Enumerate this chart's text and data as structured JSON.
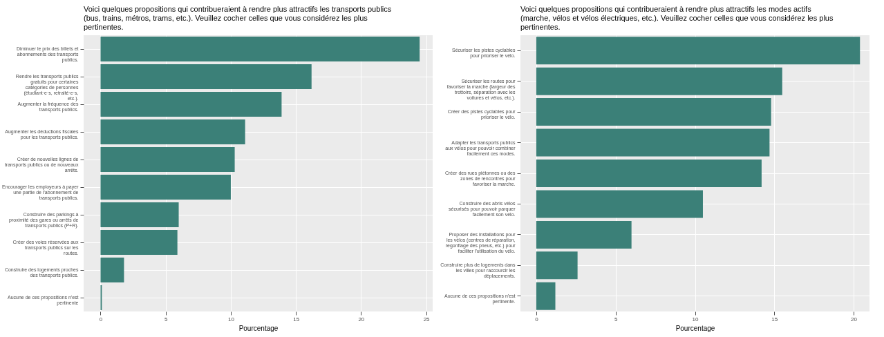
{
  "chart_data": [
    {
      "type": "bar",
      "orientation": "horizontal",
      "title": "Voici quelques propositions qui contribueraient à rendre plus attractifs les transports publics (bus, trains, métros, trams, etc.). Veuillez cocher celles que vous considérez les plus pertinentes.",
      "xlabel": "Pourcentage",
      "categories": [
        "Diminuer le prix des billets et abonnements des transports publics.",
        "Rendre les transports publics gratuits pour certaines catégories de personnes (étudiant·e·s, retraité·e·s, etc.).",
        "Augmenter la fréquence des transports publics.",
        "Augmenter les déductions fiscales pour les transports publics.",
        "Créer de nouvelles lignes de transports publics ou de nouveaux arrêts.",
        "Encourager les employeurs à payer une partie de l'abonnement de transports publics.",
        "Construire des parkings à proximité des gares ou arrêts de transports publics (P+R).",
        "Créer des voies réservées aux transports publics sur les routes.",
        "Construire des logements proches des transports publics.",
        "Aucune de ces propositions n'est pertinente"
      ],
      "values": [
        24.5,
        16.2,
        13.9,
        11.1,
        10.3,
        10.0,
        6.0,
        5.9,
        1.8,
        0.1
      ],
      "color": "#3b8078",
      "xlim": [
        -1.3,
        25.5
      ],
      "xticks": [
        0,
        5,
        10,
        15,
        20,
        25
      ],
      "grid": true
    },
    {
      "type": "bar",
      "orientation": "horizontal",
      "title": "Voici quelques propositions qui contribueraient à rendre plus attractifs les modes actifs (marche, vélos et vélos électriques, etc.). Veuillez cocher celles que vous considérez les plus pertinentes.",
      "xlabel": "Pourcentage",
      "categories": [
        "Sécuriser les pistes cyclables pour prioriser le vélo.",
        "Sécuriser les routes pour favoriser la marche (largeur des trottoirs, séparation avec les voitures et vélos, etc.).",
        "Créer des pistes cyclables pour prioriser le vélo.",
        "Adapter les transports publics aux vélos pour pouvoir combiner facilement ces modes.",
        "Créer des rues piétonnes ou des zones de rencontres pour favoriser la marche.",
        "Construire des abris vélos sécurisés pour pouvoir parquer facilement son vélo.",
        "Proposer des installations pour les vélos (centres de réparation, regonflage des pneus, etc.) pour faciliter l'utilisation du vélo.",
        "Construire plus de logements dans les villes pour raccourcir les déplacements.",
        "Aucune de ces propositions n'est pertinente."
      ],
      "values": [
        20.4,
        15.5,
        14.8,
        14.7,
        14.2,
        10.5,
        6.0,
        2.6,
        1.2
      ],
      "color": "#3b8078",
      "xlim": [
        -1.0,
        21.0
      ],
      "xticks": [
        0,
        5,
        10,
        15,
        20
      ],
      "grid": true
    }
  ]
}
